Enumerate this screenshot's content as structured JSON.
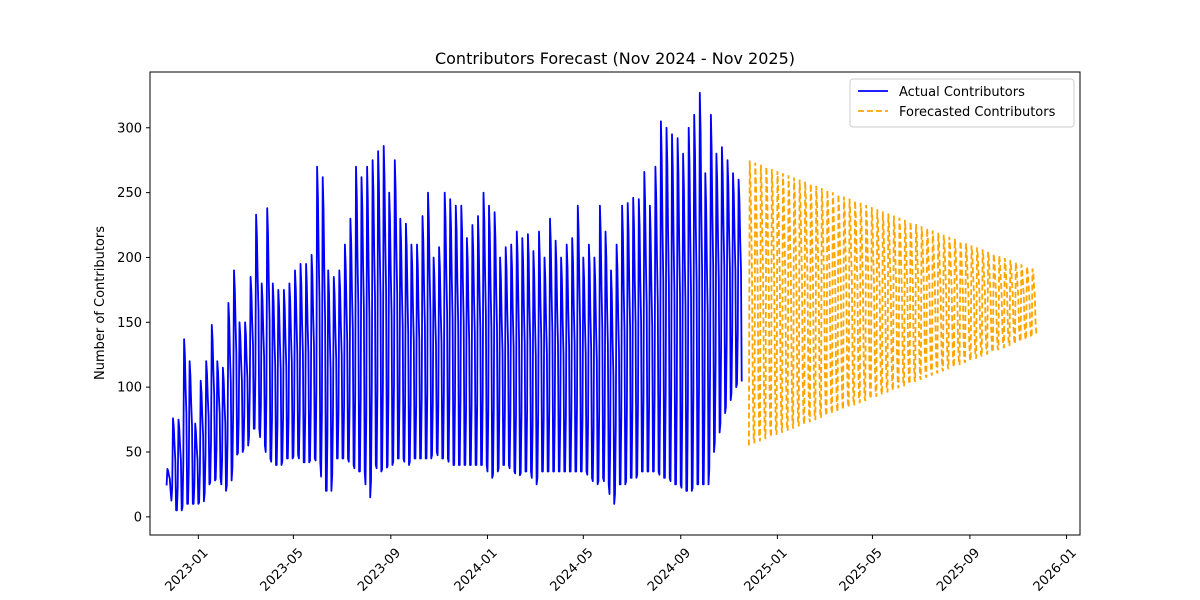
{
  "chart_data": {
    "type": "line",
    "title": "Contributors Forecast (Nov 2024 - Nov 2025)",
    "xlabel": "",
    "ylabel": "Number of Contributors",
    "ylim": [
      -14,
      343
    ],
    "xlim": [
      "2022-11-01",
      "2026-01-18"
    ],
    "x_ticks": [
      "2023-01",
      "2023-05",
      "2023-09",
      "2024-01",
      "2024-05",
      "2024-09",
      "2025-01",
      "2025-05",
      "2025-09",
      "2026-01"
    ],
    "y_ticks": [
      0,
      50,
      100,
      150,
      200,
      250,
      300
    ],
    "grid": false,
    "legend_position": "upper-right",
    "colors": {
      "actual": "#0000ff",
      "forecast": "#ffa500"
    },
    "series": [
      {
        "name": "Actual Contributors",
        "style": "solid",
        "x_start": "2022-11-22",
        "x_end": "2024-11-25",
        "x_step_days": 7,
        "weekly_low": [
          20,
          5,
          5,
          10,
          10,
          10,
          12,
          25,
          28,
          30,
          20,
          28,
          48,
          50,
          55,
          68,
          68,
          55,
          45,
          40,
          40,
          45,
          45,
          48,
          42,
          42,
          45,
          42,
          20,
          20,
          45,
          45,
          45,
          40,
          35,
          35,
          15,
          40,
          35,
          38,
          40,
          45,
          45,
          40,
          45,
          45,
          45,
          45,
          50,
          45,
          45,
          40,
          40,
          40,
          40,
          40,
          40,
          40,
          30,
          35,
          40,
          40,
          35,
          32,
          35,
          35,
          25,
          35,
          35,
          35,
          35,
          35,
          35,
          35,
          35,
          35,
          30,
          25,
          30,
          25,
          10,
          25,
          25,
          30,
          30,
          35,
          35,
          35,
          35,
          30,
          30,
          25,
          25,
          20,
          20,
          25,
          25,
          25,
          50,
          65,
          80,
          90,
          100,
          105
        ],
        "weekly_high": [
          37,
          76,
          75,
          137,
          120,
          72,
          105,
          120,
          148,
          120,
          115,
          165,
          190,
          150,
          150,
          185,
          233,
          180,
          238,
          180,
          175,
          175,
          180,
          190,
          195,
          195,
          202,
          270,
          262,
          190,
          185,
          190,
          210,
          230,
          270,
          262,
          270,
          275,
          282,
          286,
          250,
          275,
          230,
          226,
          210,
          210,
          232,
          250,
          200,
          208,
          250,
          245,
          240,
          240,
          215,
          225,
          232,
          250,
          240,
          235,
          200,
          208,
          210,
          220,
          215,
          218,
          205,
          220,
          200,
          230,
          213,
          200,
          210,
          215,
          240,
          200,
          210,
          200,
          240,
          220,
          190,
          210,
          240,
          242,
          246,
          245,
          266,
          240,
          270,
          305,
          300,
          295,
          292,
          280,
          300,
          310,
          327,
          265,
          310,
          280,
          285,
          275,
          265,
          260
        ]
      },
      {
        "name": "Forecasted Contributors",
        "style": "dashed",
        "x_start": "2024-11-26",
        "x_end": "2025-11-25",
        "x_step_days": 7,
        "mean": 165,
        "amplitude_start": 110,
        "amplitude_end": 25
      }
    ]
  }
}
